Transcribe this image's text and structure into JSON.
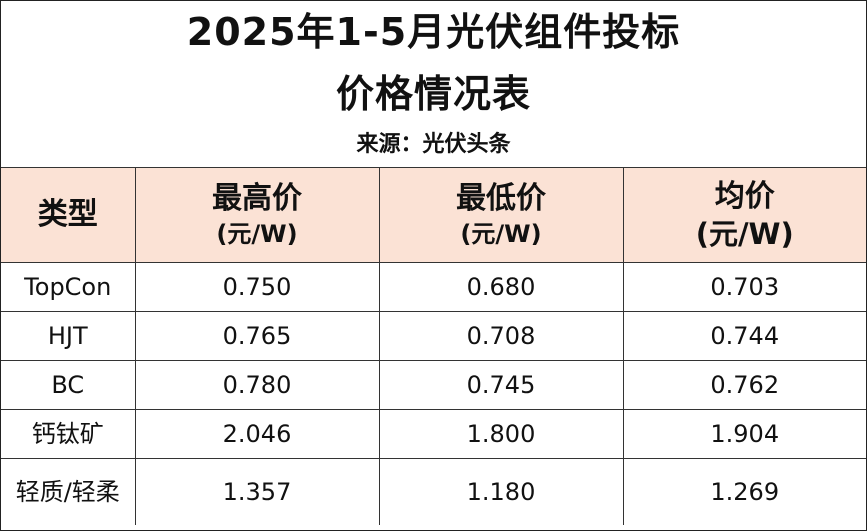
{
  "title": {
    "line1": "2025年1-5月光伏组件投标",
    "line2": "价格情况表"
  },
  "source": "来源：光伏头条",
  "table": {
    "headers": [
      {
        "name": "类型",
        "unit": ""
      },
      {
        "name": "最高价",
        "unit": "(元/W)"
      },
      {
        "name": "最低价",
        "unit": "(元/W)"
      },
      {
        "name": "均价",
        "unit": "(元/W)"
      }
    ],
    "rows": [
      {
        "type": "TopCon",
        "max": "0.750",
        "min": "0.680",
        "avg": "0.703"
      },
      {
        "type": "HJT",
        "max": "0.765",
        "min": "0.708",
        "avg": "0.744"
      },
      {
        "type": "BC",
        "max": "0.780",
        "min": "0.745",
        "avg": "0.762"
      },
      {
        "type": "钙钛矿",
        "max": "2.046",
        "min": "1.800",
        "avg": "1.904"
      },
      {
        "type": "轻质/轻柔",
        "max": "1.357",
        "min": "1.180",
        "avg": "1.269"
      }
    ]
  },
  "colors": {
    "header_background": "#fbe2d5",
    "border": "#333333",
    "text": "#111111"
  }
}
